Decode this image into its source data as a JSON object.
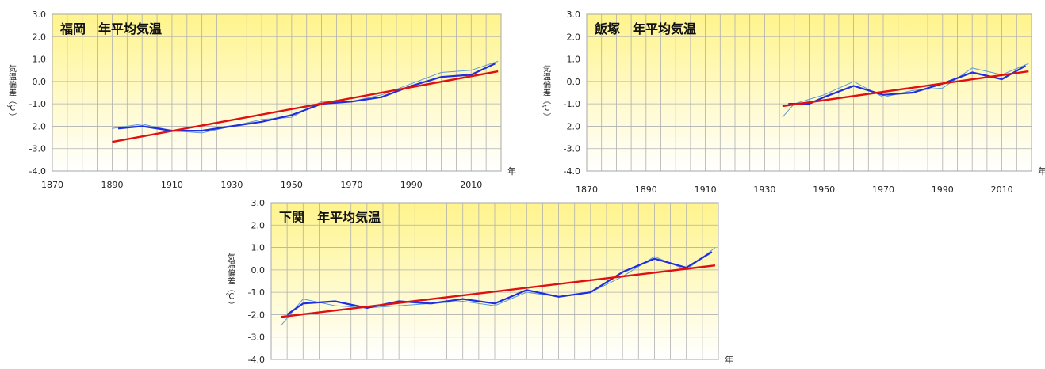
{
  "colors": {
    "bg_top": "#fff48c",
    "bg_bottom": "#ffffff",
    "grid": "#b0b0b0",
    "annual": "#5b9bd5",
    "moving_avg": "#1f2ee0",
    "trend": "#e01010"
  },
  "chart_data": [
    {
      "type": "line",
      "title": "福岡　年平均気温",
      "ylabel": "気温偏差（℃）",
      "xunit": "年",
      "xlim": [
        1870,
        2020
      ],
      "ylim": [
        -4.0,
        3.0
      ],
      "xticks": [
        "1870",
        "1890",
        "1910",
        "1930",
        "1950",
        "1970",
        "1990",
        "2010"
      ],
      "yticks": [
        "3.0",
        "2.0",
        "1.0",
        "0.0",
        "-1.0",
        "-2.0",
        "-3.0",
        "-4.0"
      ],
      "grid": true,
      "series": [
        {
          "role": "annual",
          "x": [
            1890,
            1900,
            1910,
            1920,
            1930,
            1940,
            1950,
            1960,
            1970,
            1980,
            1990,
            2000,
            2010,
            2019
          ],
          "y": [
            -2.1,
            -1.9,
            -2.2,
            -2.3,
            -2.0,
            -1.7,
            -1.6,
            -0.9,
            -0.9,
            -0.6,
            -0.1,
            0.4,
            0.5,
            0.9
          ]
        },
        {
          "role": "moving_avg",
          "x": [
            1892,
            1900,
            1910,
            1920,
            1930,
            1940,
            1950,
            1960,
            1970,
            1980,
            1990,
            2000,
            2010,
            2018
          ],
          "y": [
            -2.1,
            -2.0,
            -2.2,
            -2.2,
            -2.0,
            -1.8,
            -1.5,
            -1.0,
            -0.9,
            -0.7,
            -0.2,
            0.2,
            0.3,
            0.8
          ]
        },
        {
          "role": "trend",
          "x": [
            1890,
            2019
          ],
          "y": [
            -2.7,
            0.45
          ]
        }
      ]
    },
    {
      "type": "line",
      "title": "飯塚　年平均気温",
      "ylabel": "気温偏差（℃）",
      "xunit": "年",
      "xlim": [
        1870,
        2020
      ],
      "ylim": [
        -4.0,
        3.0
      ],
      "xticks": [
        "1870",
        "1890",
        "1910",
        "1930",
        "1950",
        "1970",
        "1990",
        "2010"
      ],
      "yticks": [
        "3.0",
        "2.0",
        "1.0",
        "0.0",
        "-1.0",
        "-2.0",
        "-3.0",
        "-4.0"
      ],
      "grid": true,
      "series": [
        {
          "role": "annual",
          "x": [
            1936,
            1940,
            1950,
            1960,
            1970,
            1980,
            1990,
            2000,
            2010,
            2019
          ],
          "y": [
            -1.6,
            -1.0,
            -0.6,
            0.0,
            -0.7,
            -0.4,
            -0.3,
            0.6,
            0.3,
            0.8
          ]
        },
        {
          "role": "moving_avg",
          "x": [
            1938,
            1945,
            1950,
            1960,
            1970,
            1980,
            1990,
            2000,
            2010,
            2018
          ],
          "y": [
            -1.0,
            -1.0,
            -0.7,
            -0.2,
            -0.6,
            -0.5,
            -0.1,
            0.4,
            0.1,
            0.7
          ]
        },
        {
          "role": "trend",
          "x": [
            1936,
            2019
          ],
          "y": [
            -1.1,
            0.45
          ]
        }
      ]
    },
    {
      "type": "line",
      "title": "下関　年平均気温",
      "ylabel": "気温偏差（℃）",
      "xunit": "年",
      "xlim": [
        1880,
        2020
      ],
      "ylim": [
        -4.0,
        3.0
      ],
      "xticks": [],
      "yticks": [
        "3.0",
        "2.0",
        "1.0",
        "0.0",
        "-1.0",
        "-2.0",
        "-3.0",
        "-4.0"
      ],
      "grid": true,
      "series": [
        {
          "role": "annual",
          "x": [
            1883,
            1890,
            1900,
            1910,
            1920,
            1930,
            1940,
            1950,
            1960,
            1970,
            1980,
            1990,
            2000,
            2010,
            2019
          ],
          "y": [
            -2.5,
            -1.3,
            -1.6,
            -1.7,
            -1.6,
            -1.5,
            -1.4,
            -1.6,
            -1.0,
            -1.2,
            -1.0,
            -0.3,
            0.6,
            0.0,
            1.0
          ]
        },
        {
          "role": "moving_avg",
          "x": [
            1885,
            1890,
            1900,
            1910,
            1920,
            1930,
            1940,
            1950,
            1960,
            1970,
            1980,
            1990,
            2000,
            2010,
            2018
          ],
          "y": [
            -2.0,
            -1.5,
            -1.4,
            -1.7,
            -1.4,
            -1.5,
            -1.3,
            -1.5,
            -0.9,
            -1.2,
            -1.0,
            -0.1,
            0.5,
            0.1,
            0.8
          ]
        },
        {
          "role": "trend",
          "x": [
            1883,
            2019
          ],
          "y": [
            -2.1,
            0.2
          ]
        }
      ]
    }
  ]
}
